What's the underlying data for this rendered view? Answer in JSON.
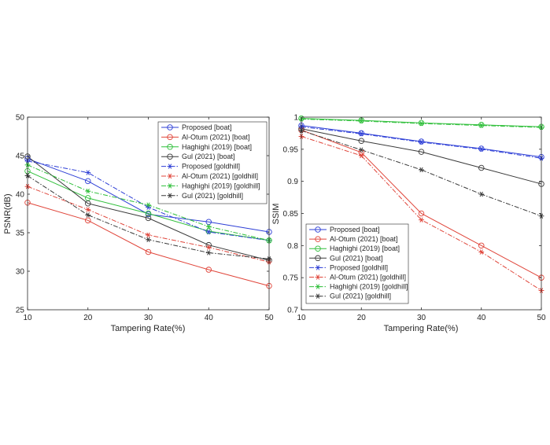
{
  "chart_data": [
    {
      "type": "line",
      "xlabel": "Tampering Rate(%)",
      "ylabel": "PSNR(dB)",
      "x": [
        10,
        20,
        30,
        40,
        50
      ],
      "xticks": [
        "10",
        "20",
        "30",
        "40",
        "50"
      ],
      "yticks": [
        "25",
        "30",
        "35",
        "40",
        "45",
        "50"
      ],
      "xlim": [
        10,
        50
      ],
      "ylim": [
        25,
        50
      ],
      "grid": false,
      "legend_position": "top-right",
      "series": [
        {
          "name": "Proposed [boat]",
          "values": [
            44.6,
            41.7,
            37.4,
            36.4,
            35.1
          ],
          "color": "#2e3fd6",
          "dash": "solid",
          "marker": "circle"
        },
        {
          "name": "Al-Otum (2021) [boat]",
          "values": [
            38.9,
            36.6,
            32.5,
            30.2,
            28.1
          ],
          "color": "#e0453a",
          "dash": "solid",
          "marker": "circle"
        },
        {
          "name": "Haghighi (2019) [boat]",
          "values": [
            43.0,
            39.5,
            37.5,
            35.2,
            34.0
          ],
          "color": "#2fbf3a",
          "dash": "solid",
          "marker": "circle"
        },
        {
          "name": "Gul (2021) [boat]",
          "values": [
            44.9,
            38.8,
            36.9,
            33.4,
            31.4
          ],
          "color": "#3a3a3a",
          "dash": "solid",
          "marker": "circle"
        },
        {
          "name": "Proposed [goldhill]",
          "values": [
            44.3,
            42.8,
            38.3,
            35.1,
            34.0
          ],
          "color": "#2e3fd6",
          "dash": "dashdot",
          "marker": "star"
        },
        {
          "name": "Al-Otum (2021) [goldhill]",
          "values": [
            41.0,
            38.0,
            34.7,
            33.1,
            31.2
          ],
          "color": "#e0453a",
          "dash": "dashdot",
          "marker": "star"
        },
        {
          "name": "Haghighi (2019) [goldhill]",
          "values": [
            43.8,
            40.4,
            38.6,
            35.8,
            34.0
          ],
          "color": "#2fbf3a",
          "dash": "dashdot",
          "marker": "star"
        },
        {
          "name": "Gul (2021) [goldhill]",
          "values": [
            42.4,
            37.3,
            34.1,
            32.4,
            31.6
          ],
          "color": "#3a3a3a",
          "dash": "dashdot",
          "marker": "star"
        }
      ]
    },
    {
      "type": "line",
      "xlabel": "Tampering Rate(%)",
      "ylabel": "SSIM",
      "x": [
        10,
        20,
        30,
        40,
        50
      ],
      "xticks": [
        "10",
        "20",
        "30",
        "40",
        "50"
      ],
      "yticks": [
        "0.7",
        "0.75",
        "0.8",
        "0.85",
        "0.9",
        "0.95",
        "1"
      ],
      "xlim": [
        10,
        50
      ],
      "ylim": [
        0.7,
        1.0
      ],
      "grid": false,
      "legend_position": "bottom-left",
      "series": [
        {
          "name": "Proposed [boat]",
          "values": [
            0.987,
            0.975,
            0.962,
            0.951,
            0.938
          ],
          "color": "#2e3fd6",
          "dash": "solid",
          "marker": "circle"
        },
        {
          "name": "Al-Otum (2021) [boat]",
          "values": [
            0.98,
            0.945,
            0.85,
            0.8,
            0.75
          ],
          "color": "#e0453a",
          "dash": "solid",
          "marker": "circle"
        },
        {
          "name": "Haghighi (2019) [boat]",
          "values": [
            0.998,
            0.995,
            0.991,
            0.988,
            0.985
          ],
          "color": "#2fbf3a",
          "dash": "solid",
          "marker": "circle"
        },
        {
          "name": "Gul (2021) [boat]",
          "values": [
            0.982,
            0.963,
            0.946,
            0.921,
            0.896
          ],
          "color": "#3a3a3a",
          "dash": "solid",
          "marker": "circle"
        },
        {
          "name": "Proposed [goldhill]",
          "values": [
            0.985,
            0.974,
            0.961,
            0.95,
            0.936
          ],
          "color": "#2e3fd6",
          "dash": "dashdot",
          "marker": "star"
        },
        {
          "name": "Al-Otum (2021) [goldhill]",
          "values": [
            0.97,
            0.94,
            0.84,
            0.79,
            0.73
          ],
          "color": "#e0453a",
          "dash": "dashdot",
          "marker": "star"
        },
        {
          "name": "Haghighi (2019) [goldhill]",
          "values": [
            0.997,
            0.994,
            0.99,
            0.987,
            0.984
          ],
          "color": "#2fbf3a",
          "dash": "dashdot",
          "marker": "star"
        },
        {
          "name": "Gul (2021) [goldhill]",
          "values": [
            0.979,
            0.949,
            0.918,
            0.88,
            0.846
          ],
          "color": "#3a3a3a",
          "dash": "dashdot",
          "marker": "star"
        }
      ]
    }
  ]
}
